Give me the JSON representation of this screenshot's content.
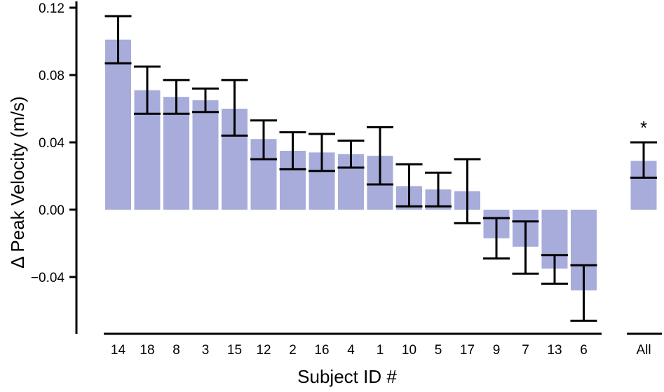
{
  "chart_data": {
    "type": "bar",
    "xlabel": "Subject ID #",
    "ylabel": "Δ Peak Velocity (m/s)",
    "ylim": [
      -0.075,
      0.125
    ],
    "yticks": [
      "0.12",
      "0.08",
      "0.04",
      "0.00",
      "−0.04"
    ],
    "ytick_values": [
      0.12,
      0.08,
      0.04,
      0.0,
      -0.04
    ],
    "bar_color": "#a7acdb",
    "categories": [
      "14",
      "18",
      "8",
      "3",
      "15",
      "12",
      "2",
      "16",
      "4",
      "1",
      "10",
      "5",
      "17",
      "9",
      "7",
      "13",
      "6"
    ],
    "values": [
      0.101,
      0.071,
      0.067,
      0.065,
      0.06,
      0.042,
      0.035,
      0.034,
      0.033,
      0.032,
      0.014,
      0.012,
      0.011,
      -0.017,
      -0.022,
      -0.035,
      -0.048
    ],
    "err_low": [
      0.087,
      0.057,
      0.057,
      0.058,
      0.044,
      0.03,
      0.024,
      0.023,
      0.025,
      0.015,
      0.002,
      0.002,
      -0.008,
      -0.029,
      -0.038,
      -0.044,
      -0.066
    ],
    "err_high": [
      0.115,
      0.085,
      0.077,
      0.072,
      0.077,
      0.053,
      0.046,
      0.045,
      0.041,
      0.049,
      0.027,
      0.022,
      0.03,
      -0.005,
      -0.007,
      -0.027,
      -0.033
    ],
    "summary": {
      "category": "All",
      "value": 0.029,
      "err_low": 0.019,
      "err_high": 0.04,
      "annotation": "*"
    }
  }
}
